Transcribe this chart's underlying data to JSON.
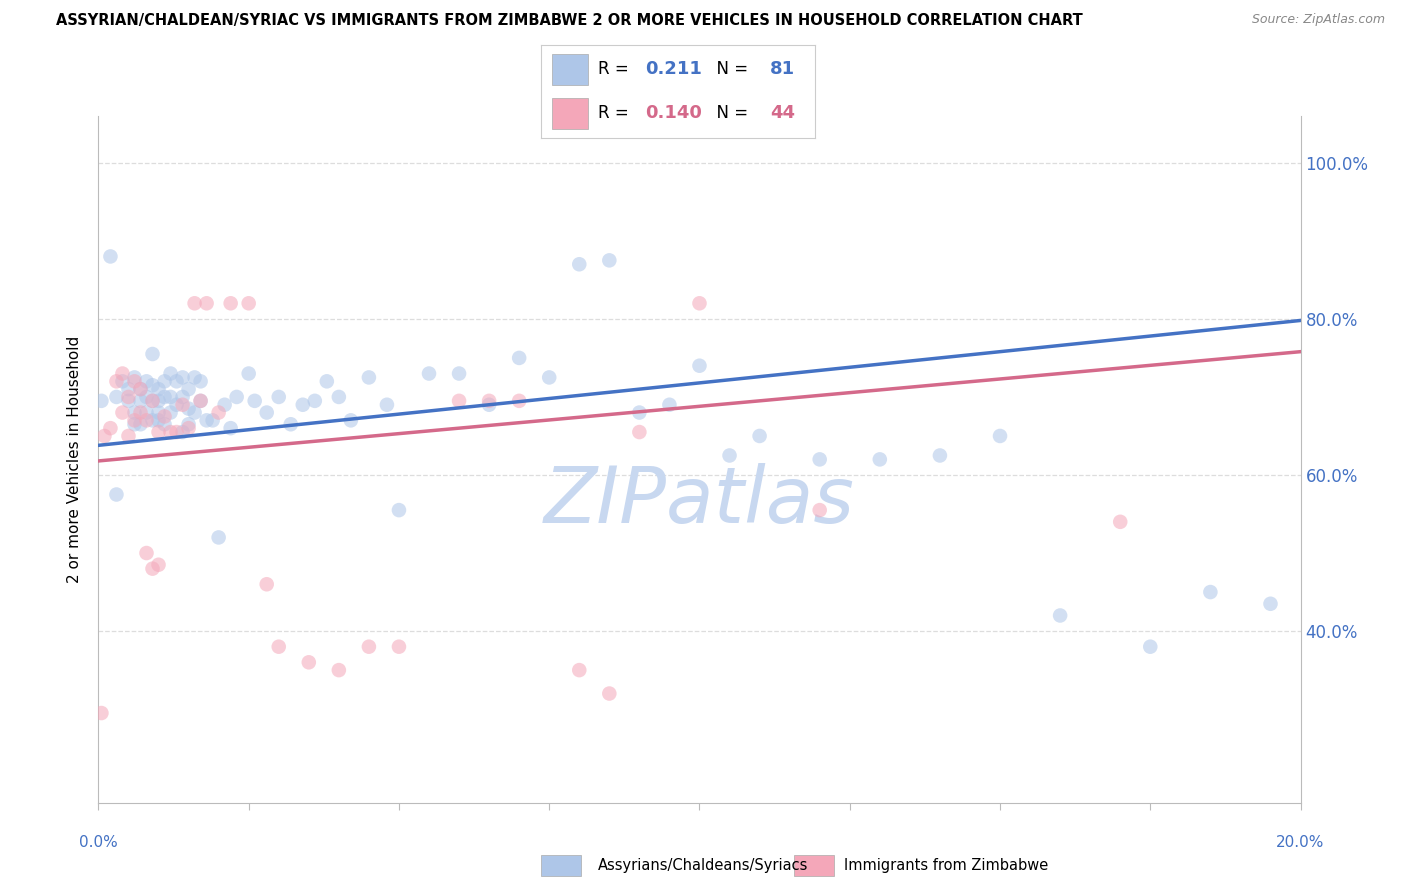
{
  "title": "ASSYRIAN/CHALDEAN/SYRIAC VS IMMIGRANTS FROM ZIMBABWE 2 OR MORE VEHICLES IN HOUSEHOLD CORRELATION CHART",
  "source": "Source: ZipAtlas.com",
  "ylabel": "2 or more Vehicles in Household",
  "ytick_labels": [
    "40.0%",
    "60.0%",
    "80.0%",
    "100.0%"
  ],
  "ytick_positions": [
    0.4,
    0.6,
    0.8,
    1.0
  ],
  "xlim": [
    0.0,
    0.2
  ],
  "ylim": [
    0.18,
    1.06
  ],
  "legend_blue_r": "0.211",
  "legend_blue_n": "81",
  "legend_pink_r": "0.140",
  "legend_pink_n": "44",
  "blue_color": "#aec6e8",
  "blue_line_color": "#4472c4",
  "pink_color": "#f4a7b9",
  "pink_line_color": "#d4698a",
  "blue_scatter_x": [
    0.0005,
    0.002,
    0.003,
    0.004,
    0.005,
    0.005,
    0.006,
    0.006,
    0.007,
    0.007,
    0.007,
    0.008,
    0.008,
    0.008,
    0.009,
    0.009,
    0.009,
    0.009,
    0.01,
    0.01,
    0.01,
    0.01,
    0.011,
    0.011,
    0.011,
    0.012,
    0.012,
    0.012,
    0.013,
    0.013,
    0.014,
    0.014,
    0.014,
    0.015,
    0.015,
    0.015,
    0.016,
    0.016,
    0.017,
    0.017,
    0.018,
    0.019,
    0.02,
    0.021,
    0.022,
    0.023,
    0.025,
    0.026,
    0.028,
    0.03,
    0.032,
    0.034,
    0.036,
    0.038,
    0.04,
    0.042,
    0.045,
    0.048,
    0.05,
    0.055,
    0.06,
    0.065,
    0.07,
    0.075,
    0.08,
    0.085,
    0.09,
    0.095,
    0.1,
    0.105,
    0.11,
    0.12,
    0.13,
    0.14,
    0.15,
    0.16,
    0.175,
    0.185,
    0.195,
    0.003,
    0.006
  ],
  "blue_scatter_y": [
    0.695,
    0.88,
    0.7,
    0.72,
    0.695,
    0.71,
    0.68,
    0.725,
    0.695,
    0.71,
    0.665,
    0.68,
    0.72,
    0.7,
    0.695,
    0.67,
    0.715,
    0.755,
    0.68,
    0.71,
    0.695,
    0.67,
    0.7,
    0.72,
    0.665,
    0.68,
    0.73,
    0.7,
    0.69,
    0.72,
    0.655,
    0.7,
    0.725,
    0.685,
    0.71,
    0.665,
    0.68,
    0.725,
    0.72,
    0.695,
    0.67,
    0.67,
    0.52,
    0.69,
    0.66,
    0.7,
    0.73,
    0.695,
    0.68,
    0.7,
    0.665,
    0.69,
    0.695,
    0.72,
    0.7,
    0.67,
    0.725,
    0.69,
    0.555,
    0.73,
    0.73,
    0.69,
    0.75,
    0.725,
    0.87,
    0.875,
    0.68,
    0.69,
    0.74,
    0.625,
    0.65,
    0.62,
    0.62,
    0.625,
    0.65,
    0.42,
    0.38,
    0.45,
    0.435,
    0.575,
    0.665
  ],
  "pink_scatter_x": [
    0.0005,
    0.001,
    0.002,
    0.003,
    0.004,
    0.004,
    0.005,
    0.005,
    0.006,
    0.006,
    0.007,
    0.007,
    0.008,
    0.008,
    0.009,
    0.009,
    0.01,
    0.01,
    0.011,
    0.012,
    0.013,
    0.014,
    0.015,
    0.016,
    0.017,
    0.018,
    0.02,
    0.022,
    0.025,
    0.028,
    0.03,
    0.035,
    0.04,
    0.045,
    0.05,
    0.06,
    0.065,
    0.07,
    0.08,
    0.085,
    0.09,
    0.1,
    0.12,
    0.17
  ],
  "pink_scatter_y": [
    0.295,
    0.65,
    0.66,
    0.72,
    0.73,
    0.68,
    0.65,
    0.7,
    0.67,
    0.72,
    0.68,
    0.71,
    0.5,
    0.67,
    0.48,
    0.695,
    0.655,
    0.485,
    0.675,
    0.655,
    0.655,
    0.69,
    0.66,
    0.82,
    0.695,
    0.82,
    0.68,
    0.82,
    0.82,
    0.46,
    0.38,
    0.36,
    0.35,
    0.38,
    0.38,
    0.695,
    0.695,
    0.695,
    0.35,
    0.32,
    0.655,
    0.82,
    0.555,
    0.54
  ],
  "blue_line_x0": 0.0,
  "blue_line_x1": 0.2,
  "blue_line_y0": 0.638,
  "blue_line_y1": 0.798,
  "pink_line_x0": 0.0,
  "pink_line_x1": 0.2,
  "pink_line_y0": 0.618,
  "pink_line_y1": 0.758,
  "watermark": "ZIPatlas",
  "watermark_color": "#c8d8f0",
  "marker_size": 110,
  "marker_alpha": 0.55,
  "grid_color": "#dddddd",
  "spine_color": "#bbbbbb"
}
